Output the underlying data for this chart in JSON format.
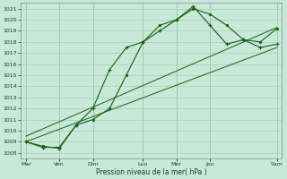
{
  "xlabel": "Pression niveau de la mer( hPa )",
  "ylim": [
    1007.5,
    1021.5
  ],
  "yticks": [
    1008,
    1009,
    1010,
    1011,
    1012,
    1013,
    1014,
    1015,
    1016,
    1017,
    1018,
    1019,
    1020,
    1021
  ],
  "day_labels": [
    "Mar",
    "Ven",
    "Dim",
    "Lun",
    "Mer",
    "Jeu",
    "Sam"
  ],
  "day_positions": [
    0,
    2,
    4,
    7,
    9,
    11,
    15
  ],
  "bg_color": "#c8e8d8",
  "grid_color": "#a0c8b0",
  "line_color": "#1a5c1a",
  "xlim": [
    -0.3,
    15.3
  ],
  "series1_x": [
    0,
    1,
    2,
    3,
    4,
    5,
    6,
    7,
    8,
    9,
    10,
    11,
    12,
    13,
    14,
    15
  ],
  "series1_y": [
    1009.0,
    1008.5,
    1008.5,
    1010.5,
    1012.0,
    1015.5,
    1017.5,
    1018.0,
    1019.0,
    1020.0,
    1021.2,
    1019.5,
    1017.8,
    1018.2,
    1017.5,
    1017.8
  ],
  "series2_x": [
    0,
    1,
    2,
    3,
    4,
    5,
    6,
    7,
    8,
    9,
    10,
    11,
    12,
    13,
    14,
    15
  ],
  "series2_y": [
    1009.0,
    1008.6,
    1008.4,
    1010.5,
    1011.0,
    1012.0,
    1015.0,
    1018.0,
    1019.5,
    1020.0,
    1021.0,
    1020.5,
    1019.5,
    1018.2,
    1018.0,
    1019.2
  ],
  "trend1_x": [
    0,
    15
  ],
  "trend1_y": [
    1009.0,
    1017.5
  ],
  "trend2_x": [
    0,
    15
  ],
  "trend2_y": [
    1009.5,
    1019.3
  ]
}
